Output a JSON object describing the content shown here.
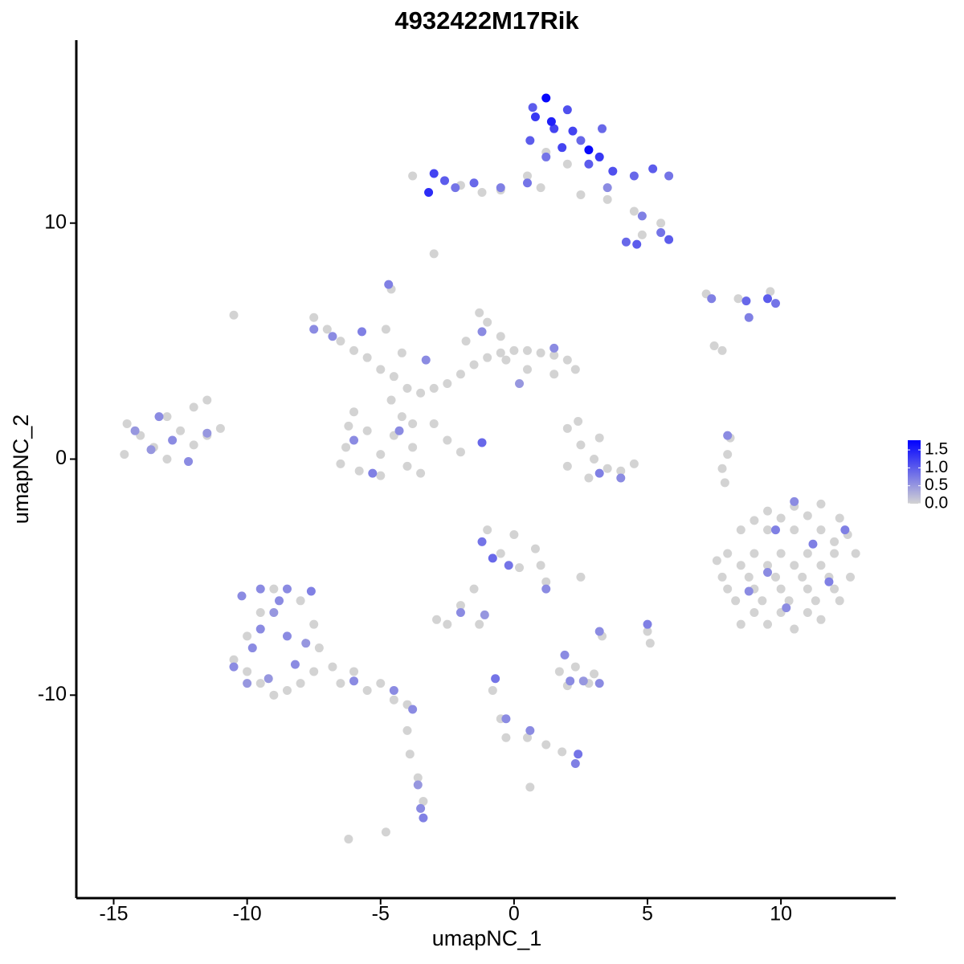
{
  "chart_data": {
    "type": "scatter",
    "title": "4932422M17Rik",
    "x_label": "umapNC_1",
    "y_label": "umapNC_2",
    "xlim": [
      -16.4,
      14.3
    ],
    "ylim": [
      -18.6,
      17.75
    ],
    "xticks": [
      -15,
      -10,
      -5,
      0,
      5,
      10
    ],
    "yticks": [
      -10,
      0,
      10
    ],
    "colors": [
      "#d3d3d3",
      "#0000ff"
    ],
    "clim": [
      0,
      1.77
    ],
    "colorbar_ticks": [
      {
        "value": 0,
        "label": "0.0"
      },
      0.5,
      {
        "value": 1,
        "label": "1.0"
      },
      1.5
    ],
    "x": [
      1.2,
      2,
      0.5,
      1,
      3.5,
      4.5,
      5.5,
      4.8,
      2.5,
      -0.5,
      -2,
      -1.2,
      -7.5,
      -7,
      -6.5,
      -6,
      -5.5,
      -5,
      -4.5,
      -4,
      -3.5,
      -3,
      -2.5,
      -2,
      -1.5,
      -1,
      -0.5,
      0,
      0.5,
      1,
      1.5,
      2,
      2.3,
      1.5,
      0.5,
      -0.5,
      -1,
      -1.3,
      -1.8,
      -6,
      -5.5,
      -6.3,
      -5.8,
      -5,
      -4,
      -3.8,
      -4.5,
      -5,
      -4.2,
      -3.8,
      -4.6,
      -4.2,
      -4.8,
      -4.6,
      -3,
      -2.5,
      -2,
      -3.5,
      -6.5,
      -6.2,
      -14.5,
      -14,
      -13.5,
      -13,
      -12.5,
      -12,
      -11.5,
      -11,
      -13,
      -14.6,
      -12,
      -11.5,
      -10.5,
      2,
      2.5,
      3,
      3.5,
      2,
      2.8,
      4,
      4.5,
      3.2,
      2.4,
      8.1,
      8,
      7.8,
      7.9,
      9.5,
      10.5,
      11.5,
      12.2,
      8.5,
      9.5,
      10.5,
      11.5,
      12.5,
      8,
      9,
      10,
      11,
      12,
      12.8,
      7.8,
      8.8,
      9.8,
      10.8,
      11.8,
      12.6,
      8.3,
      9.3,
      10.3,
      11.3,
      12.2,
      8.5,
      9.5,
      10.5,
      11.5,
      9,
      10,
      11,
      12,
      8.5,
      9.5,
      10.5,
      11.5,
      9,
      10,
      11,
      12,
      9,
      10,
      11,
      8,
      7.6,
      -10.5,
      -10,
      -9.5,
      -9,
      -8.5,
      -8,
      -7.5,
      -6.5,
      -5.5,
      -4.5,
      -4,
      -8,
      -7.5,
      -7.3,
      -9.5,
      -10,
      -9,
      -6.8,
      -6,
      -5,
      -4,
      -3.9,
      -3.6,
      -3.4,
      -6.2,
      -4.8,
      -1,
      0,
      0.8,
      1,
      -0.5,
      0.2,
      1.2,
      -1.5,
      -2,
      -2.9,
      -2.5,
      -1.3,
      2.5,
      3.3,
      5,
      5.1,
      1.7,
      2.3,
      2.8,
      3,
      2,
      -0.8,
      -0.5,
      -0.3,
      0.5,
      1.2,
      1.8,
      0.6,
      -3,
      -3.8,
      7.2,
      8.4,
      9.6,
      7.5,
      7.8,
      -0.3,
      1.2,
      0.8,
      1.5,
      2,
      0.6,
      1.8,
      2.5,
      1.2,
      2.8,
      3.2,
      3.7,
      4.5,
      5.2,
      5.8,
      3.3,
      0.7,
      1.4,
      2.2,
      -3,
      -2.6,
      -3.2,
      -2.2,
      -1.5,
      -0.5,
      0.5,
      4.2,
      4.6,
      5.5,
      5.8,
      4.8,
      3.5,
      2.8,
      7.4,
      8.7,
      9.5,
      9.8,
      8.8,
      -7.5,
      -6.8,
      -5.7,
      -3.3,
      -1.2,
      1.5,
      0.2,
      -5.3,
      -6,
      -4.3,
      -1.2,
      -4.7,
      -14.2,
      -13.3,
      -12.8,
      -13.6,
      -12.2,
      -11.5,
      3.2,
      4,
      8,
      10.5,
      9.8,
      11.2,
      8.8,
      10.2,
      11.8,
      12.4,
      9.5,
      -10.2,
      -9.5,
      -9,
      -8.5,
      -9.8,
      -8.2,
      -9.2,
      -10.5,
      -7.8,
      -8.8,
      -9.5,
      -7.6,
      -6,
      -4.5,
      -3.8,
      -8.5,
      -10,
      -3.5,
      -3.4,
      -3.6,
      -1.2,
      -0.8,
      -0.2,
      1.2,
      -2,
      -1.1,
      2.1,
      2.6,
      3.2,
      1.9,
      3.2,
      5,
      -0.7,
      -0.3,
      2.4,
      2.3,
      0.6
    ],
    "y": [
      13,
      12.5,
      12,
      11.5,
      11,
      10.5,
      10,
      9.5,
      11.2,
      11.4,
      11.6,
      11.3,
      6,
      5.5,
      5,
      4.6,
      4.3,
      3.8,
      3.5,
      3,
      2.8,
      3,
      3.2,
      3.6,
      4,
      4.3,
      4.5,
      4.6,
      4.6,
      4.5,
      4.4,
      4.2,
      3.8,
      3.6,
      3.8,
      5.2,
      5.8,
      6.2,
      5,
      2,
      1.2,
      0.5,
      -0.5,
      -0.7,
      -0.3,
      0.5,
      1,
      0.2,
      1.8,
      1.5,
      2.5,
      4.5,
      5.5,
      7.2,
      1.5,
      0.8,
      0.3,
      -0.6,
      -0.2,
      1.4,
      1.5,
      1,
      0.5,
      1.8,
      1.2,
      0.6,
      1,
      1.3,
      0,
      0.2,
      2.2,
      2.5,
      6.1,
      1.3,
      0.6,
      0,
      -0.4,
      -0.3,
      -0.8,
      -0.5,
      -0.2,
      0.9,
      1.6,
      0.9,
      0.2,
      -0.4,
      -1,
      -2.2,
      -2,
      -1.9,
      -2.5,
      -3,
      -3,
      -3,
      -3,
      -3.2,
      -4,
      -4,
      -4,
      -4,
      -4,
      -4,
      -5,
      -5,
      -5,
      -5,
      -5,
      -5,
      -6,
      -6,
      -6,
      -6,
      -6,
      -7,
      -7,
      -7.2,
      -6.8,
      -2.6,
      -2.5,
      -2.4,
      -3.5,
      -4.5,
      -4.5,
      -4.5,
      -4.5,
      -5.5,
      -5.5,
      -5.5,
      -5.5,
      -6.5,
      -6.5,
      -6.5,
      -5.5,
      -4.3,
      -8.5,
      -9,
      -9.5,
      -10,
      -9.8,
      -9.5,
      -9,
      -9.5,
      -9.8,
      -10.2,
      -10.4,
      -6,
      -7,
      -8,
      -6.5,
      -7.5,
      -5.5,
      -8.8,
      -9,
      -9.5,
      -11.5,
      -12.5,
      -13.5,
      -14.5,
      -16.1,
      -15.8,
      -3,
      -3.2,
      -3.8,
      -4.5,
      -4,
      -4.6,
      -5.2,
      -5.5,
      -6.2,
      -6.8,
      -7,
      -7,
      -5,
      -7.5,
      -7.3,
      -7.8,
      -9,
      -8.8,
      -9.5,
      -9.1,
      -9.6,
      -9.8,
      -11,
      -11.8,
      -11.8,
      -12.1,
      -12.4,
      -13.9,
      8.7,
      12,
      7,
      6.8,
      7.1,
      4.8,
      4.6,
      4.2,
      15.3,
      14.5,
      14,
      14.8,
      13.5,
      13.2,
      13.5,
      12.8,
      12.5,
      12.8,
      12.2,
      12,
      12.3,
      12,
      14,
      14.9,
      14.3,
      13.9,
      12.1,
      11.8,
      11.3,
      11.5,
      11.7,
      11.5,
      11.7,
      9.2,
      9.1,
      9.6,
      9.3,
      10.3,
      11.5,
      13.1,
      6.8,
      6.7,
      6.8,
      6.6,
      6,
      5.5,
      5.2,
      5.4,
      4.2,
      5.4,
      4.7,
      3.2,
      -0.6,
      0.8,
      1.2,
      0.7,
      7.4,
      1.2,
      1.8,
      0.8,
      0.4,
      -0.1,
      1.1,
      -0.6,
      -0.8,
      1,
      -1.8,
      -3,
      -3.6,
      -5.6,
      -6.3,
      -5.2,
      -3,
      -4.8,
      -5.8,
      -5.5,
      -6.5,
      -7.5,
      -8,
      -8.7,
      -9.3,
      -8.8,
      -7.8,
      -6,
      -7.2,
      -5.6,
      -9.4,
      -9.8,
      -10.6,
      -5.5,
      -9.5,
      -14.8,
      -15.2,
      -13.8,
      -3.5,
      -4.2,
      -4.5,
      -5.5,
      -6.5,
      -6.6,
      -9.4,
      -9.4,
      -9.5,
      -8.3,
      -7.3,
      -7,
      -9.3,
      -11,
      -12.5,
      -12.9,
      -11.5
    ],
    "values": [
      0,
      0,
      0,
      0,
      0,
      0,
      0,
      0,
      0,
      0,
      0,
      0,
      0,
      0,
      0,
      0,
      0,
      0,
      0,
      0,
      0,
      0,
      0,
      0,
      0,
      0,
      0,
      0,
      0,
      0,
      0,
      0,
      0,
      0,
      0,
      0,
      0,
      0,
      0,
      0,
      0,
      0,
      0,
      0,
      0,
      0,
      0,
      0,
      0,
      0,
      0,
      0,
      0,
      0,
      0,
      0,
      0,
      0,
      0,
      0,
      0,
      0,
      0,
      0,
      0,
      0,
      0,
      0,
      0,
      0,
      0,
      0,
      0,
      0,
      0,
      0,
      0,
      0,
      0,
      0,
      0,
      0,
      0,
      0,
      0,
      0,
      0,
      0,
      0,
      0,
      0,
      0,
      0,
      0,
      0,
      0,
      0,
      0,
      0,
      0,
      0,
      0,
      0,
      0,
      0,
      0,
      0,
      0,
      0,
      0,
      0,
      0,
      0,
      0,
      0,
      0,
      0,
      0,
      0,
      0,
      0,
      0,
      0,
      0,
      0,
      0,
      0,
      0,
      0,
      0,
      0,
      0,
      0,
      0,
      0,
      0,
      0,
      0,
      0,
      0,
      0,
      0,
      0,
      0,
      0,
      0,
      0,
      0,
      0,
      0,
      0,
      0,
      0,
      0,
      0,
      0,
      0,
      0,
      0,
      0,
      0,
      0,
      0,
      0,
      0,
      0,
      0,
      0,
      0,
      0,
      0,
      0,
      0,
      0,
      0,
      0,
      0,
      0,
      0,
      0,
      0,
      0,
      0,
      0,
      0,
      0,
      0,
      0,
      0,
      0,
      0,
      0,
      0,
      0,
      0,
      0,
      1.7,
      1.3,
      1.2,
      1.1,
      1,
      1.2,
      0.9,
      0.8,
      1,
      1.3,
      1.1,
      0.9,
      1,
      0.8,
      0.9,
      1,
      1.5,
      1.2,
      1.2,
      1,
      1.4,
      0.8,
      0.9,
      0.7,
      0.8,
      0.9,
      1,
      0.8,
      1,
      0.7,
      0.6,
      1.7,
      0.7,
      0.9,
      1,
      0.8,
      0.7,
      0.6,
      0.6,
      0.7,
      0.6,
      0.6,
      0.6,
      0.5,
      0.7,
      0.6,
      0.6,
      0.9,
      0.7,
      0.5,
      0.6,
      0.6,
      0.5,
      0.6,
      0.5,
      0.7,
      0.6,
      0.6,
      0.6,
      0.7,
      0.7,
      0.6,
      0.6,
      0.7,
      0.7,
      0.6,
      0.6,
      0.6,
      0.5,
      0.6,
      0.6,
      0.6,
      0.5,
      0.6,
      0.5,
      0.6,
      0.6,
      0.7,
      0.6,
      0.6,
      0.6,
      0.6,
      0.5,
      0.6,
      0.7,
      0.5,
      0.8,
      0.9,
      0.8,
      0.6,
      0.6,
      0.5,
      0.6,
      0.5,
      0.6,
      0.6,
      0.6,
      0.7,
      0.8,
      0.6,
      0.8,
      0.7,
      0.6
    ]
  }
}
